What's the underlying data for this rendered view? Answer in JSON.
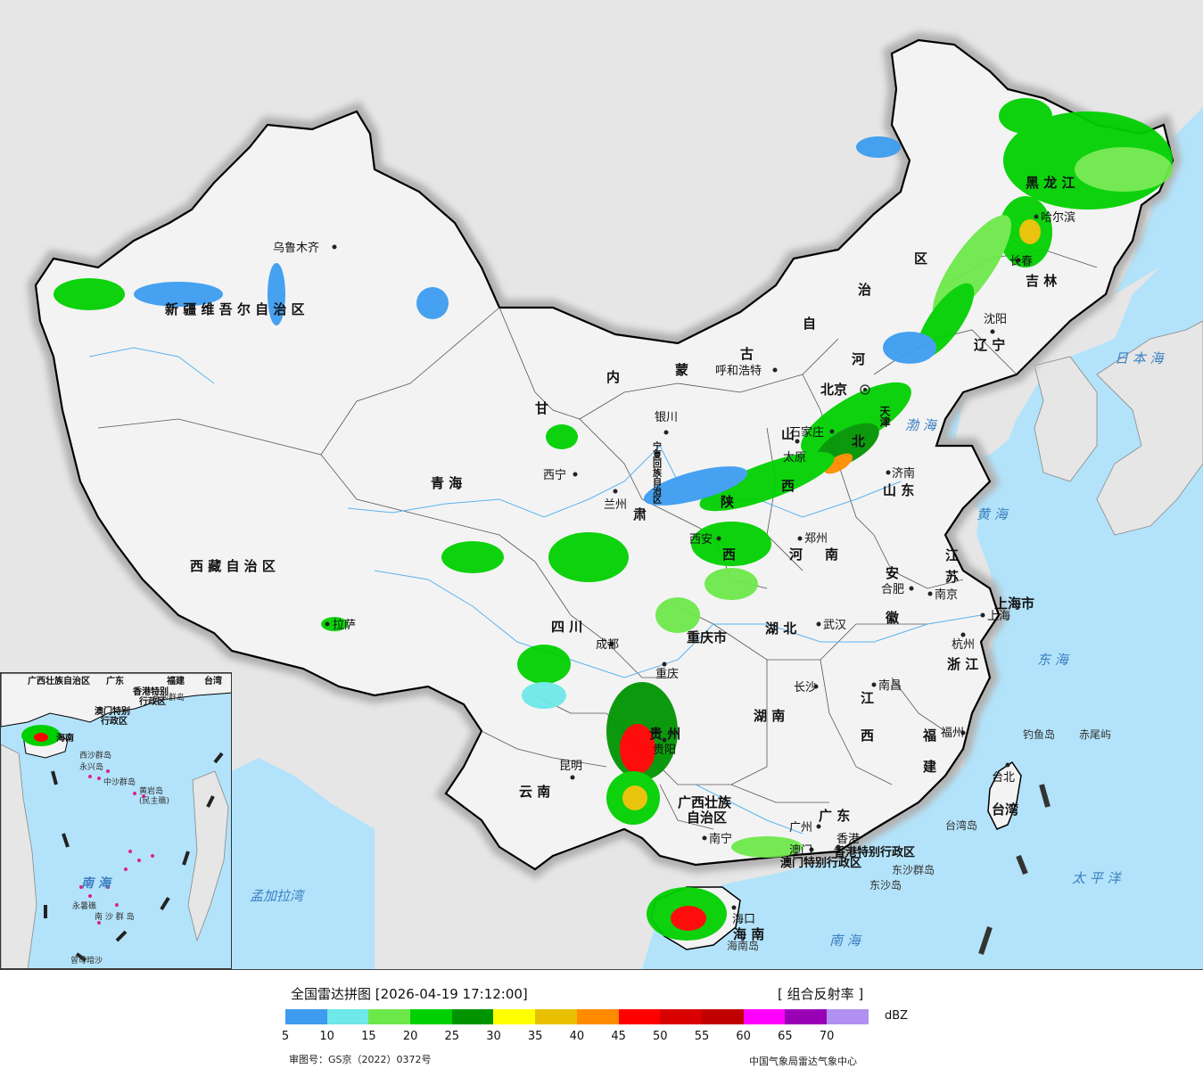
{
  "title": "全国雷达拼图 [2026-04-19 17:12:00]",
  "product": "[ 组合反射率 ]",
  "legend": {
    "unit": "dBZ",
    "ticks": [
      "5",
      "10",
      "15",
      "20",
      "25",
      "30",
      "35",
      "40",
      "45",
      "50",
      "55",
      "60",
      "65",
      "70"
    ],
    "colors": [
      "#3d9cf0",
      "#6ee8e8",
      "#6de84a",
      "#00d000",
      "#009400",
      "#ffff00",
      "#e8c000",
      "#ff8c00",
      "#ff0000",
      "#d80000",
      "#c00000",
      "#ff00ff",
      "#9a00b4",
      "#b090f0"
    ]
  },
  "footer": {
    "approval": "审图号：GS京（2022）0372号",
    "credit": "中国气象局雷达气象中心"
  },
  "colors": {
    "sea": "#b3e3fa",
    "land": "#f2f2f2",
    "neighbor": "#e6e6e6",
    "border": "#000000"
  },
  "map_labels": {
    "regions": {
      "xinjiang": "新 疆 维 吾 尔 自 治 区",
      "xizang": "西 藏 自 治 区",
      "qinghai": "青            海",
      "gansu": "甘",
      "su": "肃",
      "neimenggu_nei": "内",
      "neimenggu_meng": "蒙",
      "neimenggu_gu": "古",
      "neimenggu_zi": "自",
      "neimenggu_zhi": "治",
      "neimenggu_qu": "区",
      "ningxia": "宁夏回族自治区",
      "shaanxi": "陕",
      "shaanxi_xi": "西",
      "shanxi": "山",
      "shanxi_xi": "西",
      "hebei_he": "河",
      "hebei_bei": "北",
      "henan_he": "河",
      "henan_nan": "南",
      "shandong": "山  东",
      "heilongjiang": "黑  龙  江",
      "jilin": "吉  林",
      "liaoning": "辽  宁",
      "tianjin": "天津",
      "sichuan": "四          川",
      "chongqing": "重庆市",
      "hubei": "湖     北",
      "hunan": "湖     南",
      "anhui": "安",
      "anhui_hui": "徽",
      "jiangsu": "江",
      "jiangsu_su": "苏",
      "shanghai": "上海市",
      "zhejiang": "浙 江",
      "jiangxi_jiang": "江",
      "jiangxi_xi": "西",
      "fujian_fu": "福",
      "fujian_jian": "建",
      "guizhou": "贵   州",
      "yunnan": "云      南",
      "guangxi1": "广西壮族",
      "guangxi2": "自治区",
      "guangdong": "广   东",
      "hainan": "海   南",
      "taiwan": "台湾",
      "hk": "香港特别行政区",
      "macao": "澳门特别行政区",
      "beijing": "北京"
    },
    "cities": {
      "urumqi": "乌鲁木齐",
      "lhasa": "拉萨",
      "xining": "西宁",
      "lanzhou": "兰州",
      "yinchuan": "银川",
      "hohhot": "呼和浩特",
      "taiyuan": "太原",
      "shijiazhuang": "石家庄",
      "jinan": "济南",
      "zhengzhou": "郑州",
      "xian": "西安",
      "chengdu": "成都",
      "chongqing": "重庆",
      "wuhan": "武汉",
      "hefei": "合肥",
      "nanjing": "南京",
      "shanghai": "上海",
      "hangzhou": "杭州",
      "nanchang": "南昌",
      "changsha": "长沙",
      "guiyang": "贵阳",
      "kunming": "昆明",
      "nanning": "南宁",
      "guangzhou": "广州",
      "aomen": "澳门",
      "xianggang": "香港",
      "fuzhou": "福州",
      "taibei": "台北",
      "haikou": "海口",
      "harbin": "哈尔滨",
      "changchun": "长春",
      "shenyang": "沈阳"
    },
    "seas": {
      "japan_sea": "日 本 海",
      "bohai": "渤  海",
      "yellow_sea": "黄  海",
      "east_sea": "东  海",
      "pacific": "太  平  洋",
      "south_sea": "南     海",
      "bengal": "孟加拉湾"
    },
    "islands": {
      "diaoyu": "钓鱼岛",
      "chiwei": "赤尾屿",
      "taiwan_island": "台湾岛",
      "dongsha_qundao": "东沙群岛",
      "dongsha_dao": "东沙岛",
      "hainan_dao": "海南岛"
    },
    "inset": {
      "guangxi": "广西壮族自治区",
      "guangdong": "广东",
      "fujian": "福建",
      "taiwan": "台湾",
      "hk": "香港特别",
      "hk2": "行政区",
      "macao": "澳门特别",
      "macao2": "行政区",
      "dongsha": "东沙群岛",
      "hainan": "海南",
      "xisha": "西沙群岛",
      "yongxing": "永兴岛",
      "zhongsha": "中沙群岛",
      "huangyan": "黄岩岛",
      "minzhujiao": "(民主礁)",
      "south_sea": "南      海",
      "yongshu": "永暑礁",
      "nansha": "南 沙 群 岛",
      "zengmu": "曾母暗沙"
    }
  }
}
